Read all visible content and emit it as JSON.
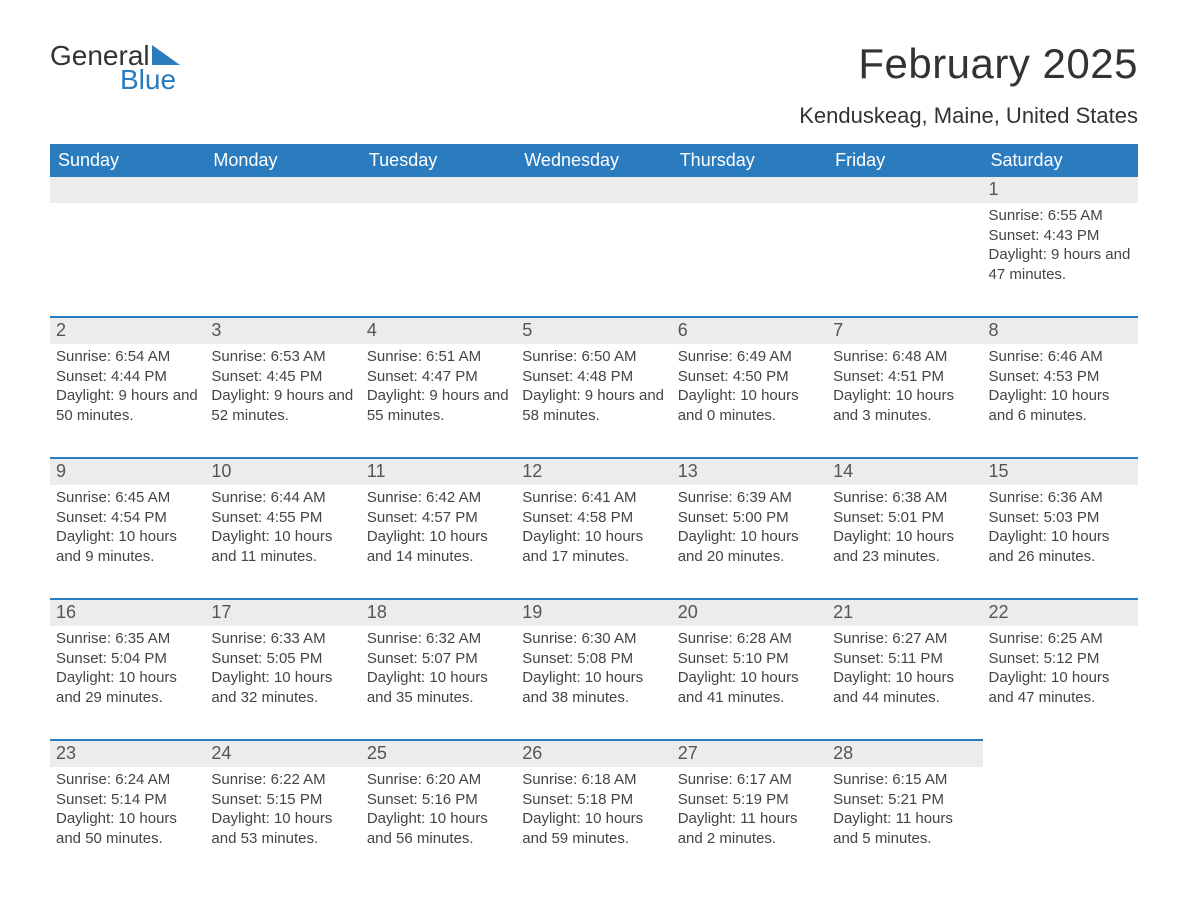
{
  "logo": {
    "text1": "General",
    "text2": "Blue",
    "flag_color": "#2b7bbf"
  },
  "title": "February 2025",
  "location": "Kenduskeag, Maine, United States",
  "colors": {
    "header_bg": "#2b7bbf",
    "header_text": "#ffffff",
    "daynum_bg": "#ececec",
    "daynum_border": "#2b7bbf",
    "body_text": "#444444"
  },
  "fonts": {
    "title_size": 42,
    "location_size": 22,
    "header_size": 18,
    "daynum_size": 18,
    "body_size": 15
  },
  "day_headers": [
    "Sunday",
    "Monday",
    "Tuesday",
    "Wednesday",
    "Thursday",
    "Friday",
    "Saturday"
  ],
  "weeks": [
    [
      {
        "n": "",
        "sun": "",
        "set": "",
        "day": ""
      },
      {
        "n": "",
        "sun": "",
        "set": "",
        "day": ""
      },
      {
        "n": "",
        "sun": "",
        "set": "",
        "day": ""
      },
      {
        "n": "",
        "sun": "",
        "set": "",
        "day": ""
      },
      {
        "n": "",
        "sun": "",
        "set": "",
        "day": ""
      },
      {
        "n": "",
        "sun": "",
        "set": "",
        "day": ""
      },
      {
        "n": "1",
        "sun": "Sunrise: 6:55 AM",
        "set": "Sunset: 4:43 PM",
        "day": "Daylight: 9 hours and 47 minutes."
      }
    ],
    [
      {
        "n": "2",
        "sun": "Sunrise: 6:54 AM",
        "set": "Sunset: 4:44 PM",
        "day": "Daylight: 9 hours and 50 minutes."
      },
      {
        "n": "3",
        "sun": "Sunrise: 6:53 AM",
        "set": "Sunset: 4:45 PM",
        "day": "Daylight: 9 hours and 52 minutes."
      },
      {
        "n": "4",
        "sun": "Sunrise: 6:51 AM",
        "set": "Sunset: 4:47 PM",
        "day": "Daylight: 9 hours and 55 minutes."
      },
      {
        "n": "5",
        "sun": "Sunrise: 6:50 AM",
        "set": "Sunset: 4:48 PM",
        "day": "Daylight: 9 hours and 58 minutes."
      },
      {
        "n": "6",
        "sun": "Sunrise: 6:49 AM",
        "set": "Sunset: 4:50 PM",
        "day": "Daylight: 10 hours and 0 minutes."
      },
      {
        "n": "7",
        "sun": "Sunrise: 6:48 AM",
        "set": "Sunset: 4:51 PM",
        "day": "Daylight: 10 hours and 3 minutes."
      },
      {
        "n": "8",
        "sun": "Sunrise: 6:46 AM",
        "set": "Sunset: 4:53 PM",
        "day": "Daylight: 10 hours and 6 minutes."
      }
    ],
    [
      {
        "n": "9",
        "sun": "Sunrise: 6:45 AM",
        "set": "Sunset: 4:54 PM",
        "day": "Daylight: 10 hours and 9 minutes."
      },
      {
        "n": "10",
        "sun": "Sunrise: 6:44 AM",
        "set": "Sunset: 4:55 PM",
        "day": "Daylight: 10 hours and 11 minutes."
      },
      {
        "n": "11",
        "sun": "Sunrise: 6:42 AM",
        "set": "Sunset: 4:57 PM",
        "day": "Daylight: 10 hours and 14 minutes."
      },
      {
        "n": "12",
        "sun": "Sunrise: 6:41 AM",
        "set": "Sunset: 4:58 PM",
        "day": "Daylight: 10 hours and 17 minutes."
      },
      {
        "n": "13",
        "sun": "Sunrise: 6:39 AM",
        "set": "Sunset: 5:00 PM",
        "day": "Daylight: 10 hours and 20 minutes."
      },
      {
        "n": "14",
        "sun": "Sunrise: 6:38 AM",
        "set": "Sunset: 5:01 PM",
        "day": "Daylight: 10 hours and 23 minutes."
      },
      {
        "n": "15",
        "sun": "Sunrise: 6:36 AM",
        "set": "Sunset: 5:03 PM",
        "day": "Daylight: 10 hours and 26 minutes."
      }
    ],
    [
      {
        "n": "16",
        "sun": "Sunrise: 6:35 AM",
        "set": "Sunset: 5:04 PM",
        "day": "Daylight: 10 hours and 29 minutes."
      },
      {
        "n": "17",
        "sun": "Sunrise: 6:33 AM",
        "set": "Sunset: 5:05 PM",
        "day": "Daylight: 10 hours and 32 minutes."
      },
      {
        "n": "18",
        "sun": "Sunrise: 6:32 AM",
        "set": "Sunset: 5:07 PM",
        "day": "Daylight: 10 hours and 35 minutes."
      },
      {
        "n": "19",
        "sun": "Sunrise: 6:30 AM",
        "set": "Sunset: 5:08 PM",
        "day": "Daylight: 10 hours and 38 minutes."
      },
      {
        "n": "20",
        "sun": "Sunrise: 6:28 AM",
        "set": "Sunset: 5:10 PM",
        "day": "Daylight: 10 hours and 41 minutes."
      },
      {
        "n": "21",
        "sun": "Sunrise: 6:27 AM",
        "set": "Sunset: 5:11 PM",
        "day": "Daylight: 10 hours and 44 minutes."
      },
      {
        "n": "22",
        "sun": "Sunrise: 6:25 AM",
        "set": "Sunset: 5:12 PM",
        "day": "Daylight: 10 hours and 47 minutes."
      }
    ],
    [
      {
        "n": "23",
        "sun": "Sunrise: 6:24 AM",
        "set": "Sunset: 5:14 PM",
        "day": "Daylight: 10 hours and 50 minutes."
      },
      {
        "n": "24",
        "sun": "Sunrise: 6:22 AM",
        "set": "Sunset: 5:15 PM",
        "day": "Daylight: 10 hours and 53 minutes."
      },
      {
        "n": "25",
        "sun": "Sunrise: 6:20 AM",
        "set": "Sunset: 5:16 PM",
        "day": "Daylight: 10 hours and 56 minutes."
      },
      {
        "n": "26",
        "sun": "Sunrise: 6:18 AM",
        "set": "Sunset: 5:18 PM",
        "day": "Daylight: 10 hours and 59 minutes."
      },
      {
        "n": "27",
        "sun": "Sunrise: 6:17 AM",
        "set": "Sunset: 5:19 PM",
        "day": "Daylight: 11 hours and 2 minutes."
      },
      {
        "n": "28",
        "sun": "Sunrise: 6:15 AM",
        "set": "Sunset: 5:21 PM",
        "day": "Daylight: 11 hours and 5 minutes."
      },
      {
        "n": "",
        "sun": "",
        "set": "",
        "day": ""
      }
    ]
  ]
}
